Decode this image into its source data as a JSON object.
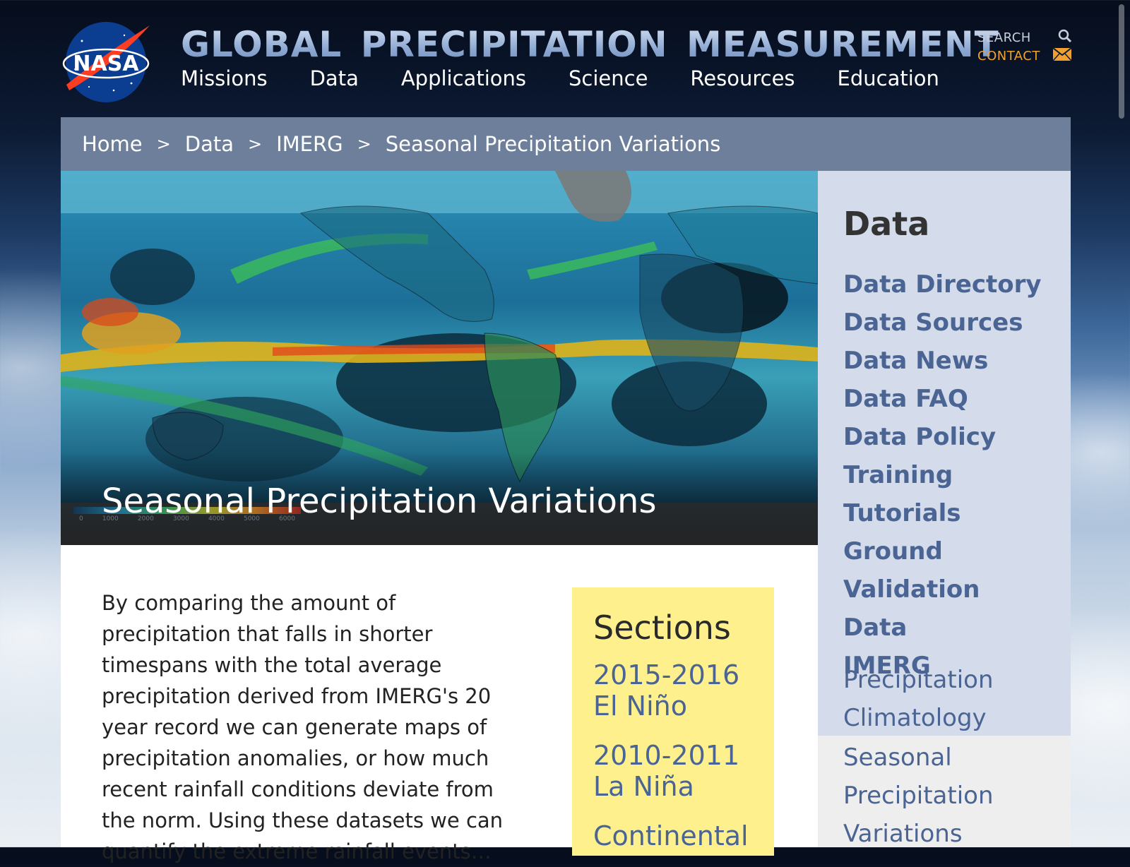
{
  "header": {
    "site_title": "GLOBAL PRECIPITATION MEASUREMENT",
    "logo_text": "NASA",
    "nav": [
      "Missions",
      "Data",
      "Applications",
      "Science",
      "Resources",
      "Education"
    ],
    "search_label": "SEARCH",
    "contact_label": "CONTACT"
  },
  "breadcrumb": [
    "Home",
    "Data",
    "IMERG",
    "Seasonal Precipitation Variations"
  ],
  "breadcrumb_separator": ">",
  "hero": {
    "title": "Seasonal Precipitation Variations",
    "legend_ticks": [
      "0",
      "1000",
      "2000",
      "3000",
      "4000",
      "5000",
      "6000"
    ]
  },
  "intro_text": "By comparing the amount of precipitation that falls in shorter timespans with the total average precipitation derived from IMERG's 20 year record we can generate maps of precipitation anomalies, or how much recent rainfall conditions deviate from the norm. Using these datasets we can quantify the extreme rainfall events…",
  "sections": {
    "heading": "Sections",
    "links": [
      "2015-2016\nEl Niño",
      "2010-2011\nLa Niña",
      "Continental"
    ]
  },
  "sidebar": {
    "heading": "Data",
    "links": [
      "Data Directory",
      "Data Sources",
      "Data News",
      "Data FAQ",
      "Data Policy",
      "Training",
      "Tutorials",
      "Ground Validation\nData",
      "IMERG"
    ],
    "sublinks": [
      "Precipitation\nClimatology"
    ],
    "active": "Seasonal\nPrecipitation\nVariations"
  },
  "colors": {
    "breadcrumb_bg": "#6e7f9b",
    "sidebar_bg": "#d4dceb",
    "link": "#4a6494",
    "contact": "#f0a030",
    "sections_bg": "#fff08e"
  },
  "icons": [
    "nasa-logo",
    "search-icon",
    "mail-icon"
  ]
}
